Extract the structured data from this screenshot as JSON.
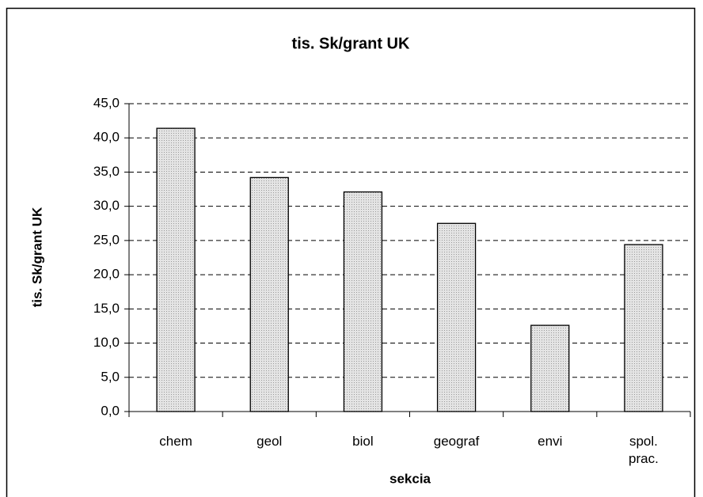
{
  "chart_data": {
    "type": "bar",
    "title": "tis. Sk/grant UK",
    "x_label": "sekcia",
    "y_label": "tis. Sk/grant UK",
    "categories": [
      "chem",
      "geol",
      "biol",
      "geograf",
      "envi",
      "spol. prac."
    ],
    "values": [
      41.4,
      34.2,
      32.1,
      27.5,
      12.6,
      24.4
    ],
    "color": "#e4e4e4",
    "ylim": [
      0,
      45
    ],
    "yticks": [
      {
        "value": 0,
        "label": "0,0"
      },
      {
        "value": 5,
        "label": "5,0"
      },
      {
        "value": 10,
        "label": "10,0"
      },
      {
        "value": 15,
        "label": "15,0"
      },
      {
        "value": 20,
        "label": "20,0"
      },
      {
        "value": 25,
        "label": "25,0"
      },
      {
        "value": 30,
        "label": "30,0"
      },
      {
        "value": 35,
        "label": "35,0"
      },
      {
        "value": 40,
        "label": "40,0"
      },
      {
        "value": 45,
        "label": "45,0"
      }
    ],
    "grid": true
  }
}
